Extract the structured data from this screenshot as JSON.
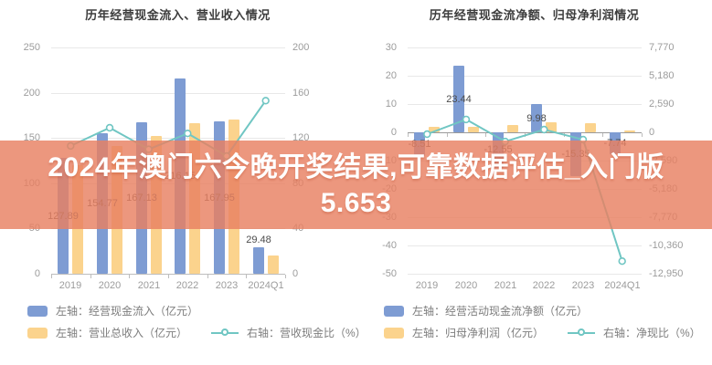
{
  "banner": {
    "line1": "2024年澳门六今晚开奖结果,可靠数据评估_入门版",
    "line2": "5.653",
    "bg_color": "rgba(232,128,98,0.82)",
    "text_color": "#ffffff"
  },
  "colors": {
    "bar_blue": "#7e9cd3",
    "bar_orange": "#fbd38d",
    "line_teal": "#70c6c3",
    "grid": "#e8e8e8",
    "axis_text": "#9c9c9c",
    "title_text": "#3d3d3d"
  },
  "chart_data": [
    {
      "type": "bar",
      "title": "历年经营现金流入、营业收入情况",
      "categories": [
        "2019",
        "2020",
        "2021",
        "2022",
        "2023",
        "2024Q1"
      ],
      "left_axis": {
        "max": 250,
        "min": 0,
        "ticks": [
          250,
          200,
          150,
          100,
          50,
          0
        ],
        "labels": [
          "250",
          "200",
          "150",
          "100",
          "50",
          "0"
        ]
      },
      "right_axis": {
        "max": 200,
        "min": 0,
        "labels": [
          "200",
          "160",
          "120",
          "80",
          "40",
          "0"
        ]
      },
      "series": [
        {
          "name": "左轴：经营现金流入（亿元）",
          "type": "bar",
          "axis": "left",
          "color": "#7e9cd3",
          "values": [
            127.89,
            154.77,
            167.13,
            216.15,
            167.95,
            29.48
          ],
          "labels": [
            "127.89",
            "154.77",
            "167.13",
            "216.15",
            "167.95",
            "29.48"
          ],
          "label_pos": [
            "mid",
            "mid",
            "mid",
            "mid",
            "mid",
            "above"
          ]
        },
        {
          "name": "左轴：营业总收入（亿元）",
          "type": "bar",
          "axis": "left",
          "color": "#fbd38d",
          "values": [
            120,
            141,
            152,
            166,
            170,
            20
          ]
        },
        {
          "name": "右轴：营收现金比（%）",
          "type": "line",
          "axis": "right",
          "color": "#70c6c3",
          "values": [
            113,
            129,
            110,
            124,
            104,
            153
          ]
        }
      ],
      "legend_rows": [
        [
          0
        ],
        [
          1,
          2
        ]
      ]
    },
    {
      "type": "bar",
      "title": "历年经营现金流净额、归母净利润情况",
      "categories": [
        "2019",
        "2020",
        "2021",
        "2022",
        "2023",
        "2024Q1"
      ],
      "left_axis": {
        "max": 30,
        "min": -50,
        "ticks": [
          30,
          20,
          10,
          0,
          -10,
          -20,
          -30,
          -40,
          -50
        ],
        "labels": [
          "30",
          "20",
          "10",
          "0",
          "-10",
          "-20",
          "-30",
          "-40",
          "-50"
        ]
      },
      "right_axis": {
        "max": 7770,
        "min": -12950,
        "labels": [
          "7,770",
          "5,180",
          "2,590",
          "0",
          "-2,590",
          "-5,180",
          "-7,770",
          "-10,360",
          "-12,950"
        ]
      },
      "series": [
        {
          "name": "左轴：经营活动现金流净额（亿元）",
          "type": "bar",
          "axis": "left",
          "color": "#7e9cd3",
          "values": [
            -8.51,
            23.44,
            -12.55,
            9.98,
            -15.35,
            -7.74
          ],
          "labels": [
            "-8.51",
            "23.44",
            "-12.55",
            "9.98",
            "-15.35",
            "-7.74"
          ],
          "label_pos": [
            "mid",
            "mid",
            "mid",
            "mid",
            "mid",
            "mid"
          ]
        },
        {
          "name": "左轴：归母净利润（亿元）",
          "type": "bar",
          "axis": "left",
          "color": "#fbd38d",
          "values": [
            2.0,
            1.9,
            2.5,
            3.6,
            3.3,
            0.8
          ]
        },
        {
          "name": "右轴：净现比（%）",
          "type": "line",
          "axis": "right",
          "color": "#70c6c3",
          "values": [
            -170,
            1180,
            -840,
            250,
            -670,
            -11800
          ]
        }
      ],
      "legend_rows": [
        [
          0
        ],
        [
          1,
          2
        ]
      ]
    }
  ]
}
